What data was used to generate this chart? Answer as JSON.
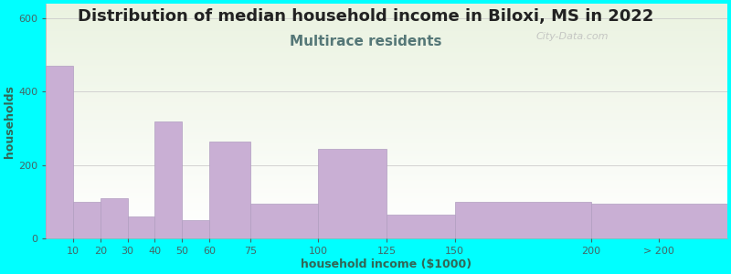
{
  "title": "Distribution of median household income in Biloxi, MS in 2022",
  "subtitle": "Multirace residents",
  "xlabel": "household income ($1000)",
  "ylabel": "households",
  "background_color": "#00FFFF",
  "plot_bg_top": "#eaf2e0",
  "plot_bg_bottom": "#ffffff",
  "bar_color": "#c9afd4",
  "bar_edge_color": "#b09dc0",
  "bin_edges": [
    0,
    10,
    20,
    30,
    40,
    50,
    60,
    75,
    100,
    125,
    150,
    200,
    250
  ],
  "bin_labels": [
    "10",
    "20",
    "30",
    "40",
    "50",
    "60",
    "75",
    "100",
    "125",
    "150",
    "200",
    "> 200"
  ],
  "values": [
    470,
    100,
    110,
    60,
    320,
    50,
    265,
    95,
    245,
    65,
    100,
    95
  ],
  "ylim": [
    0,
    640
  ],
  "yticks": [
    0,
    200,
    400,
    600
  ],
  "title_fontsize": 13,
  "subtitle_fontsize": 11,
  "axis_label_fontsize": 9,
  "tick_fontsize": 8,
  "watermark_text": "City-Data.com",
  "title_color": "#222222",
  "subtitle_color": "#557777",
  "axis_label_color": "#336655",
  "tick_color": "#446666",
  "grid_color": "#cccccc",
  "watermark_color": "#bbbbbb"
}
